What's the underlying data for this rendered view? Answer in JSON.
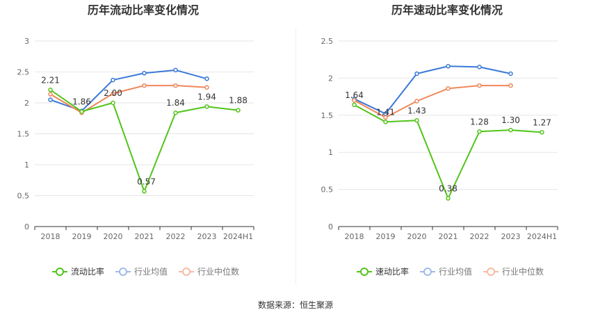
{
  "chart_data": [
    {
      "type": "line",
      "title": "历年流动比率变化情况",
      "categories": [
        "2018",
        "2019",
        "2020",
        "2021",
        "2022",
        "2023",
        "2024H1"
      ],
      "ylim": [
        0,
        3
      ],
      "yticks": [
        "0",
        "0.5",
        "1",
        "1.5",
        "2",
        "2.5",
        "3"
      ],
      "grid": true,
      "legend": "bottom",
      "series": [
        {
          "name": "流动比率",
          "color": "#52c41a",
          "values": [
            2.21,
            1.86,
            2.0,
            0.57,
            1.84,
            1.94,
            1.88
          ],
          "labels": [
            "2.21",
            "1.86",
            "2.00",
            "0.57",
            "1.84",
            "1.94",
            "1.88"
          ]
        },
        {
          "name": "行业均值",
          "color": "#3a78d8",
          "values": [
            2.05,
            1.87,
            2.37,
            2.48,
            2.53,
            2.39,
            null
          ]
        },
        {
          "name": "行业中位数",
          "color": "#f0875a",
          "values": [
            2.14,
            1.84,
            2.15,
            2.28,
            2.28,
            2.25,
            null
          ]
        }
      ]
    },
    {
      "type": "line",
      "title": "历年速动比率变化情况",
      "categories": [
        "2018",
        "2019",
        "2020",
        "2021",
        "2022",
        "2023",
        "2024H1"
      ],
      "ylim": [
        0,
        2.5
      ],
      "yticks": [
        "0",
        "0.5",
        "1",
        "1.5",
        "2",
        "2.5"
      ],
      "grid": true,
      "legend": "bottom",
      "series": [
        {
          "name": "速动比率",
          "color": "#52c41a",
          "values": [
            1.64,
            1.41,
            1.43,
            0.38,
            1.28,
            1.3,
            1.27
          ],
          "labels": [
            "1.64",
            "1.41",
            "1.43",
            "0.38",
            "1.28",
            "1.30",
            "1.27"
          ]
        },
        {
          "name": "行业均值",
          "color": "#3a78d8",
          "values": [
            1.72,
            1.52,
            2.06,
            2.16,
            2.15,
            2.06,
            null
          ]
        },
        {
          "name": "行业中位数",
          "color": "#f0875a",
          "values": [
            1.7,
            1.47,
            1.69,
            1.86,
            1.9,
            1.9,
            null
          ]
        }
      ]
    }
  ],
  "footer": {
    "source": "数据来源：恒生聚源"
  }
}
